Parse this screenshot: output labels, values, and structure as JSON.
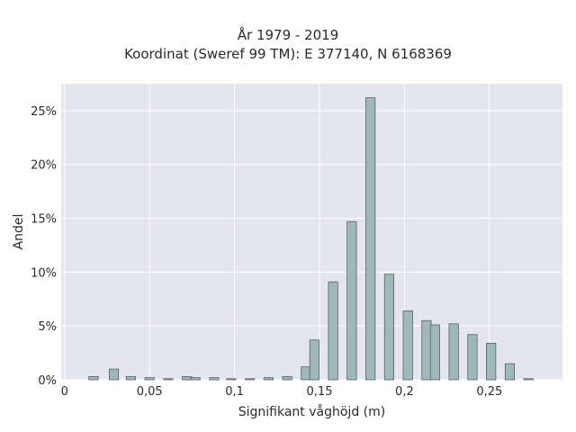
{
  "chart_data": {
    "type": "bar",
    "title_line1": "År 1979 - 2019",
    "title_line2": "Koordinat (Sweref 99 TM): E 377140, N 6168369",
    "xlabel": "Signifikant våghöjd (m)",
    "ylabel": "Andel",
    "xlim": [
      -0.002,
      0.293
    ],
    "ylim": [
      0,
      0.275
    ],
    "bar_width": 0.0055,
    "x_ticks": [
      {
        "value": 0,
        "label": "0"
      },
      {
        "value": 0.05,
        "label": "0,05"
      },
      {
        "value": 0.1,
        "label": "0,1"
      },
      {
        "value": 0.15,
        "label": "0,15"
      },
      {
        "value": 0.2,
        "label": "0,2"
      },
      {
        "value": 0.25,
        "label": "0,25"
      }
    ],
    "y_ticks": [
      {
        "value": 0,
        "label": "0%"
      },
      {
        "value": 0.05,
        "label": "5%"
      },
      {
        "value": 0.1,
        "label": "10%"
      },
      {
        "value": 0.15,
        "label": "15%"
      },
      {
        "value": 0.2,
        "label": "20%"
      },
      {
        "value": 0.25,
        "label": "25%"
      }
    ],
    "bars": [
      {
        "x": 0.017,
        "y": 0.003
      },
      {
        "x": 0.029,
        "y": 0.01
      },
      {
        "x": 0.039,
        "y": 0.003
      },
      {
        "x": 0.05,
        "y": 0.002
      },
      {
        "x": 0.061,
        "y": 0.001
      },
      {
        "x": 0.072,
        "y": 0.003
      },
      {
        "x": 0.077,
        "y": 0.002
      },
      {
        "x": 0.088,
        "y": 0.002
      },
      {
        "x": 0.098,
        "y": 0.001
      },
      {
        "x": 0.109,
        "y": 0.001
      },
      {
        "x": 0.12,
        "y": 0.002
      },
      {
        "x": 0.131,
        "y": 0.003
      },
      {
        "x": 0.142,
        "y": 0.012
      },
      {
        "x": 0.147,
        "y": 0.037
      },
      {
        "x": 0.158,
        "y": 0.091
      },
      {
        "x": 0.169,
        "y": 0.147
      },
      {
        "x": 0.18,
        "y": 0.262
      },
      {
        "x": 0.191,
        "y": 0.098
      },
      {
        "x": 0.202,
        "y": 0.064
      },
      {
        "x": 0.213,
        "y": 0.055
      },
      {
        "x": 0.218,
        "y": 0.051
      },
      {
        "x": 0.229,
        "y": 0.052
      },
      {
        "x": 0.24,
        "y": 0.042
      },
      {
        "x": 0.251,
        "y": 0.034
      },
      {
        "x": 0.262,
        "y": 0.015
      },
      {
        "x": 0.273,
        "y": 0.001
      }
    ],
    "colors": {
      "bar_fill": "#9fb8b8",
      "bar_stroke": "#4a5252",
      "plot_background": "#e5e5f0",
      "grid": "#ffffff"
    },
    "grid": true,
    "legend": "none"
  }
}
